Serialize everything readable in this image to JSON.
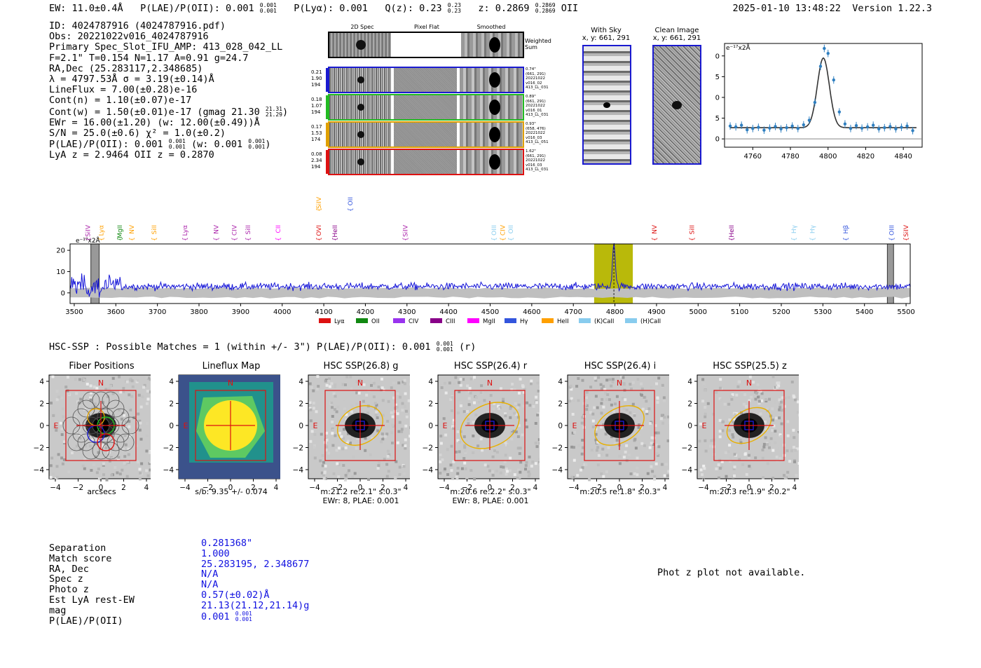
{
  "header": {
    "ew": "EW: 11.0±0.4Å",
    "plae_label": "P(LAE)/P(OII): 0.001",
    "plae_hi": "0.001",
    "plae_lo": "0.001",
    "plya": "P(Lyα): 0.001",
    "qz_label": "Q(z): 0.23",
    "qz_hi": "0.23",
    "qz_lo": "0.23",
    "z_label": "z: 0.2869",
    "z_hi": "0.2869",
    "z_lo": "0.2869",
    "z_line": "OII",
    "timestamp": "2025-01-10 13:48:22",
    "version": "Version 1.22.3"
  },
  "info": {
    "id": "ID: 4024787916 (4024787916.pdf)",
    "obs": "Obs: 20221022v016_4024787916",
    "primary": "Primary Spec_Slot_IFU_AMP: 413_028_042_LL",
    "params": "F=2.1\"  T=0.154  N=1.17  A=0.91  g=24.7",
    "radec": "RA,Dec (25.283117,2.348685)",
    "lambda": "λ = 4797.53Å  σ = 3.19(±0.14)Å",
    "lineflux": "LineFlux = 7.00(±0.28)e-16",
    "contn": "Cont(n) = 1.10(±0.07)e-17",
    "contw": "Cont(w) = 1.50(±0.01)e-17 (gmag 21.30",
    "contw_hi": "21.31",
    "contw_lo": "21.29",
    "contw_end": ")",
    "ewr": "EWr = 16.00(±1.20) (w: 12.00(±0.49))Å",
    "sn": "S/N = 25.0(±0.6)  χ² = 1.0(±0.2)",
    "plae": "P(LAE)/P(OII): 0.001",
    "plae_hi": "0.001",
    "plae_lo": "0.001",
    "plae_w": "(w: 0.001",
    "plae_w_hi": "0.001",
    "plae_w_lo": "0.001",
    "plae_w_end": ")",
    "lya_z": "LyA z = 2.9464  OII z = 0.2870"
  },
  "cutouts": {
    "col_2d": "2D Spec",
    "col_flat": "Pixel Flat",
    "col_smooth": "Smoothed",
    "weighted": "Weighted Sum",
    "rows": [
      {
        "left": [
          "0.21",
          "1.90",
          "194"
        ],
        "right": [
          "0.74\"",
          "(661, 291)",
          "20221022",
          "v016_02",
          "413_LL_031"
        ],
        "color": "#1a1ad0"
      },
      {
        "left": [
          "0.18",
          "1.07",
          "194"
        ],
        "right": [
          "0.89\"",
          "(661, 291)",
          "20221022",
          "v016_01",
          "413_LL_031"
        ],
        "color": "#22bb22"
      },
      {
        "left": [
          "0.17",
          "1.53",
          "174"
        ],
        "right": [
          "0.93\"",
          "(658, 476)",
          "20221022",
          "v016_03",
          "413_LL_051"
        ],
        "color": "#e0a000"
      },
      {
        "left": [
          "0.08",
          "2.34",
          "194"
        ],
        "right": [
          "1.62\"",
          "(661, 291)",
          "20221022",
          "v016_03",
          "413_LL_031"
        ],
        "color": "#dd1111"
      }
    ]
  },
  "sky": {
    "with_sky_title": "With Sky",
    "with_sky_xy": "x, y: 661, 291",
    "clean_title": "Clean Image",
    "clean_xy": "x, y: 661, 291"
  },
  "zoom_chart": {
    "ylabel": "e⁻¹⁷x2Å"
  },
  "full_spectrum": {
    "ylabel": "e⁻¹⁷x2Å",
    "legend": [
      {
        "name": "Lyα",
        "color": "#dd1111"
      },
      {
        "name": "OII",
        "color": "#118811"
      },
      {
        "name": "CIV",
        "color": "#9933ee"
      },
      {
        "name": "CIII",
        "color": "#880088"
      },
      {
        "name": "MgII",
        "color": "#ff00ff"
      },
      {
        "name": "Hγ",
        "color": "#3355dd"
      },
      {
        "name": "HeII",
        "color": "#ffa000"
      },
      {
        "name": "(K)CaII",
        "color": "#88ccee"
      },
      {
        "name": "(H)CaII",
        "color": "#88ccee"
      }
    ],
    "lines": [
      {
        "name": "SiIV",
        "wl": 3533,
        "color": "#aa22aa"
      },
      {
        "name": "Lyα",
        "wl": 3565,
        "color": "#ffa000"
      },
      {
        "name": "MgII",
        "wl": 3610,
        "color": "#118811"
      },
      {
        "name": "NV",
        "wl": 3638,
        "color": "#ffa000"
      },
      {
        "name": "SiII",
        "wl": 3692,
        "color": "#ffa000"
      },
      {
        "name": "Lyα",
        "wl": 3766,
        "color": "#aa22aa"
      },
      {
        "name": "NV",
        "wl": 3841,
        "color": "#aa22aa"
      },
      {
        "name": "CIV",
        "wl": 3885,
        "color": "#aa22aa"
      },
      {
        "name": "SiII",
        "wl": 3918,
        "color": "#aa22aa"
      },
      {
        "name": "CII",
        "wl": 3990,
        "color": "#ff00ff"
      },
      {
        "name": "OVI",
        "wl": 4088,
        "color": "#dd1111"
      },
      {
        "name": "HeII",
        "wl": 4127,
        "color": "#880088"
      },
      {
        "name": "SiIV",
        "wl": 4296,
        "color": "#aa22aa"
      },
      {
        "name": "OIII",
        "wl": 4509,
        "color": "#88ccee"
      },
      {
        "name": "CIV",
        "wl": 4530,
        "color": "#ffa000"
      },
      {
        "name": "OII",
        "wl": 4550,
        "color": "#88ccee"
      },
      {
        "name": "NV",
        "wl": 4895,
        "color": "#dd1111"
      },
      {
        "name": "SiII",
        "wl": 4985,
        "color": "#dd1111"
      },
      {
        "name": "HeII",
        "wl": 5080,
        "color": "#880088"
      },
      {
        "name": "Hγ",
        "wl": 5230,
        "color": "#88ccee"
      },
      {
        "name": "Hγ",
        "wl": 5275,
        "color": "#88ccee"
      },
      {
        "name": "Hβ",
        "wl": 5355,
        "color": "#3355dd"
      },
      {
        "name": "OIII",
        "wl": 5465,
        "color": "#3355dd"
      },
      {
        "name": "SiIV",
        "wl": 5500,
        "color": "#dd1111"
      }
    ],
    "upper_lines": [
      {
        "name": "SiIV",
        "wl": 4088,
        "color": "#ffa000"
      },
      {
        "name": "OII",
        "wl": 4127,
        "color": "#3355dd"
      }
    ]
  },
  "hsc": {
    "summary": "HSC-SSP : Possible Matches = 1 (within +/- 3\")  P(LAE)/P(OII): 0.001",
    "summary_hi": "0.001",
    "summary_lo": "0.001",
    "summary_band": "(r)",
    "panels": [
      {
        "title": "Fiber Positions",
        "cap1": "arcsecs",
        "cap2": ""
      },
      {
        "title": "Lineflux Map",
        "cap1": "s/b: 9.35 +/- 0.074",
        "cap2": ""
      },
      {
        "title": "HSC SSP(26.8) g",
        "cap1": "m:21.2  re:2.1\"  s:0.3\"",
        "cap2": "EWr: 8, PLAE: 0.001"
      },
      {
        "title": "HSC SSP(26.4) r",
        "cap1": "m:20.6  re:2.2\"  s:0.3\"",
        "cap2": "EWr: 8, PLAE: 0.001"
      },
      {
        "title": "HSC SSP(26.4) i",
        "cap1": "m:20.5  re:1.8\"  s:0.3\"",
        "cap2": ""
      },
      {
        "title": "HSC SSP(25.5) z",
        "cap1": "m:20.3  re:1.9\"  s:0.2\"",
        "cap2": ""
      }
    ],
    "north": "N",
    "east": "E",
    "ticks": [
      "4",
      "2",
      "0",
      "−2",
      "−4"
    ],
    "xticks": [
      "−4",
      "−2",
      "0",
      "2",
      "4"
    ]
  },
  "match_table": {
    "rows": [
      {
        "key": "Separation",
        "value": "0.281368\""
      },
      {
        "key": "Match score",
        "value": "1.000"
      },
      {
        "key": "RA, Dec",
        "value": "25.283195, 2.348677"
      },
      {
        "key": "Spec z",
        "value": "N/A"
      },
      {
        "key": "Photo z",
        "value": "N/A"
      },
      {
        "key": "Est LyA rest-EW",
        "value": "0.57(±0.02)Å"
      },
      {
        "key": "mag",
        "value": "21.13(21.12,21.14)g"
      },
      {
        "key": "P(LAE)/P(OII)",
        "value": "0.001"
      }
    ],
    "plae_hi": "0.001",
    "plae_lo": "0.001",
    "photz_note": "Phot z plot not available."
  },
  "chart_data": [
    {
      "type": "scatter",
      "title": "",
      "xlabel": "",
      "ylabel": "e⁻¹⁷x2Å",
      "xlim": [
        4745,
        4850
      ],
      "ylim": [
        -2,
        23
      ],
      "xticks": [
        4760,
        4780,
        4800,
        4820,
        4840
      ],
      "yticks": [
        0,
        5,
        10,
        15,
        20
      ],
      "x": [
        4748,
        4751,
        4754,
        4757,
        4760,
        4763,
        4766,
        4769,
        4772,
        4775,
        4778,
        4781,
        4784,
        4787,
        4790,
        4793,
        4796,
        4798,
        4800,
        4803,
        4806,
        4809,
        4812,
        4815,
        4818,
        4821,
        4824,
        4827,
        4830,
        4833,
        4836,
        4839,
        4842,
        4845
      ],
      "y": [
        3.1,
        2.9,
        3.3,
        2.2,
        2.5,
        2.8,
        2.1,
        2.6,
        3.0,
        2.4,
        2.7,
        3.1,
        2.5,
        3.4,
        4.5,
        8.8,
        17.5,
        21.8,
        20.6,
        14.2,
        6.5,
        3.6,
        2.5,
        3.2,
        2.6,
        2.9,
        3.3,
        2.4,
        2.7,
        3.0,
        2.4,
        2.8,
        3.1,
        2.0
      ],
      "yerr": 0.9,
      "fit": {
        "continuum": 2.7,
        "center": 4797.5,
        "sigma": 3.19,
        "amplitude": 16.8
      }
    },
    {
      "type": "line",
      "title": "",
      "xlabel": "",
      "ylabel": "e⁻¹⁷x2Å",
      "xlim": [
        3490,
        5510
      ],
      "ylim": [
        -5,
        23
      ],
      "xticks": [
        3500,
        3600,
        3700,
        3800,
        3900,
        4000,
        4100,
        4200,
        4300,
        4400,
        4500,
        4600,
        4700,
        4800,
        4900,
        5000,
        5100,
        5200,
        5300,
        5400,
        5500
      ],
      "yticks": [
        0,
        10,
        20
      ],
      "continuum": 3.0,
      "noise_sigma": 1.2,
      "peak": {
        "x": 4797.5,
        "y": 21.0,
        "sigma": 3.2
      },
      "highlight_band": [
        4750,
        4843
      ],
      "masked_bands": [
        [
          3540,
          3560
        ],
        [
          5455,
          5470
        ]
      ],
      "error_band": 2.2
    }
  ]
}
